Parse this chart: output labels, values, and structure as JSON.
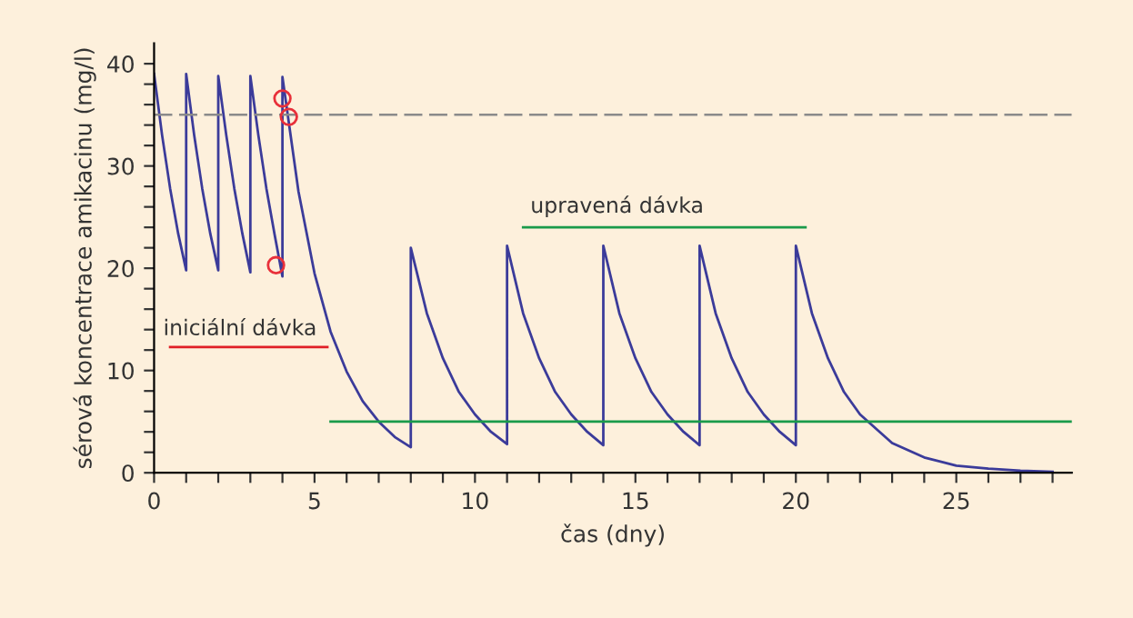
{
  "chart_data": {
    "type": "line",
    "xlabel": "čas (dny)",
    "ylabel": "sérová koncentrace amikacinu (mg/l)",
    "series": [
      {
        "color": "#3b3b9a",
        "x": [
          0,
          0.25,
          0.5,
          0.75,
          1,
          1,
          1.25,
          1.5,
          1.75,
          2,
          2,
          2.25,
          2.5,
          2.75,
          3,
          3,
          3.25,
          3.5,
          3.75,
          4,
          4,
          4.5,
          5,
          5.5,
          6,
          6.5,
          7,
          7.5,
          8,
          8,
          8.5,
          9,
          9.5,
          10,
          10.5,
          11,
          11,
          11.5,
          12,
          12.5,
          13,
          13.5,
          14,
          14,
          14.5,
          15,
          15.5,
          16,
          16.5,
          17,
          17,
          17.5,
          18,
          18.5,
          19,
          19.5,
          20,
          20,
          20.5,
          21,
          21.5,
          22,
          23,
          24,
          25,
          26,
          27,
          28
        ],
        "values": [
          39,
          33,
          27.8,
          23.4,
          19.8,
          39,
          33,
          27.8,
          23.4,
          19.8,
          38.8,
          33,
          27.8,
          23.4,
          19.6,
          38.8,
          33,
          27.8,
          23.4,
          19.2,
          38.7,
          27.5,
          19.5,
          13.8,
          9.9,
          7,
          5,
          3.5,
          2.5,
          22,
          15.6,
          11.2,
          7.9,
          5.7,
          4,
          2.8,
          22.2,
          15.6,
          11.2,
          7.9,
          5.7,
          4,
          2.7,
          22.2,
          15.6,
          11.2,
          7.9,
          5.7,
          4,
          2.7,
          22.2,
          15.6,
          11.2,
          7.9,
          5.7,
          4,
          2.7,
          22.2,
          15.6,
          11.2,
          7.9,
          5.7,
          2.9,
          1.5,
          0.7,
          0.4,
          0.2,
          0.1
        ]
      },
      {
        "type": "scatter",
        "marker": "circle",
        "color": "#e8303a",
        "x": [
          3.8,
          4.0,
          4.2
        ],
        "values": [
          20.3,
          36.6,
          34.8
        ]
      },
      {
        "color": "#1a9a4a",
        "x": [
          5.5,
          28.6
        ],
        "values": [
          5,
          5
        ]
      },
      {
        "color": "#e01f26",
        "x": [
          0.5,
          5.4
        ],
        "values": [
          12.3,
          12.3
        ]
      },
      {
        "color": "#1a9a4a",
        "x": [
          11.5,
          20.3
        ],
        "values": [
          24,
          24
        ]
      }
    ],
    "ref_lines": [
      {
        "axis": "y",
        "value": 35,
        "color": "#8a8a8a",
        "line_style": "dashed"
      }
    ],
    "annotations": [
      "iniciální dávka",
      "upravená dávka"
    ],
    "xlim": [
      0,
      28.6
    ],
    "ylim": [
      0,
      42
    ],
    "xticks": [
      0,
      {
        "value": 1,
        "label": null
      },
      {
        "value": 2,
        "label": null
      },
      {
        "value": 3,
        "label": null
      },
      {
        "value": 4,
        "label": null
      },
      5,
      {
        "value": 6,
        "label": null
      },
      {
        "value": 7,
        "label": null
      },
      {
        "value": 8,
        "label": null
      },
      {
        "value": 9,
        "label": null
      },
      10,
      {
        "value": 11,
        "label": null
      },
      {
        "value": 12,
        "label": null
      },
      {
        "value": 13,
        "label": null
      },
      {
        "value": 14,
        "label": null
      },
      15,
      {
        "value": 16,
        "label": null
      },
      {
        "value": 17,
        "label": null
      },
      {
        "value": 18,
        "label": null
      },
      {
        "value": 19,
        "label": null
      },
      20,
      {
        "value": 21,
        "label": null
      },
      {
        "value": 22,
        "label": null
      },
      {
        "value": 23,
        "label": null
      },
      {
        "value": 24,
        "label": null
      },
      25,
      {
        "value": 26,
        "label": null
      },
      {
        "value": 27,
        "label": null
      },
      {
        "value": 28,
        "label": null
      }
    ],
    "yticks": [
      0,
      {
        "value": 2,
        "label": null
      },
      {
        "value": 4,
        "label": null
      },
      {
        "value": 6,
        "label": null
      },
      {
        "value": 8,
        "label": null
      },
      10,
      {
        "value": 12,
        "label": null
      },
      {
        "value": 14,
        "label": null
      },
      {
        "value": 16,
        "label": null
      },
      {
        "value": 18,
        "label": null
      },
      20,
      {
        "value": 22,
        "label": null
      },
      {
        "value": 24,
        "label": null
      },
      {
        "value": 26,
        "label": null
      },
      {
        "value": 28,
        "label": null
      },
      30,
      {
        "value": 32,
        "label": null
      },
      {
        "value": 34,
        "label": null
      },
      {
        "value": 36,
        "label": null
      },
      {
        "value": 38,
        "label": null
      },
      40
    ],
    "line_style": "solid",
    "grid": false,
    "legend": false
  }
}
